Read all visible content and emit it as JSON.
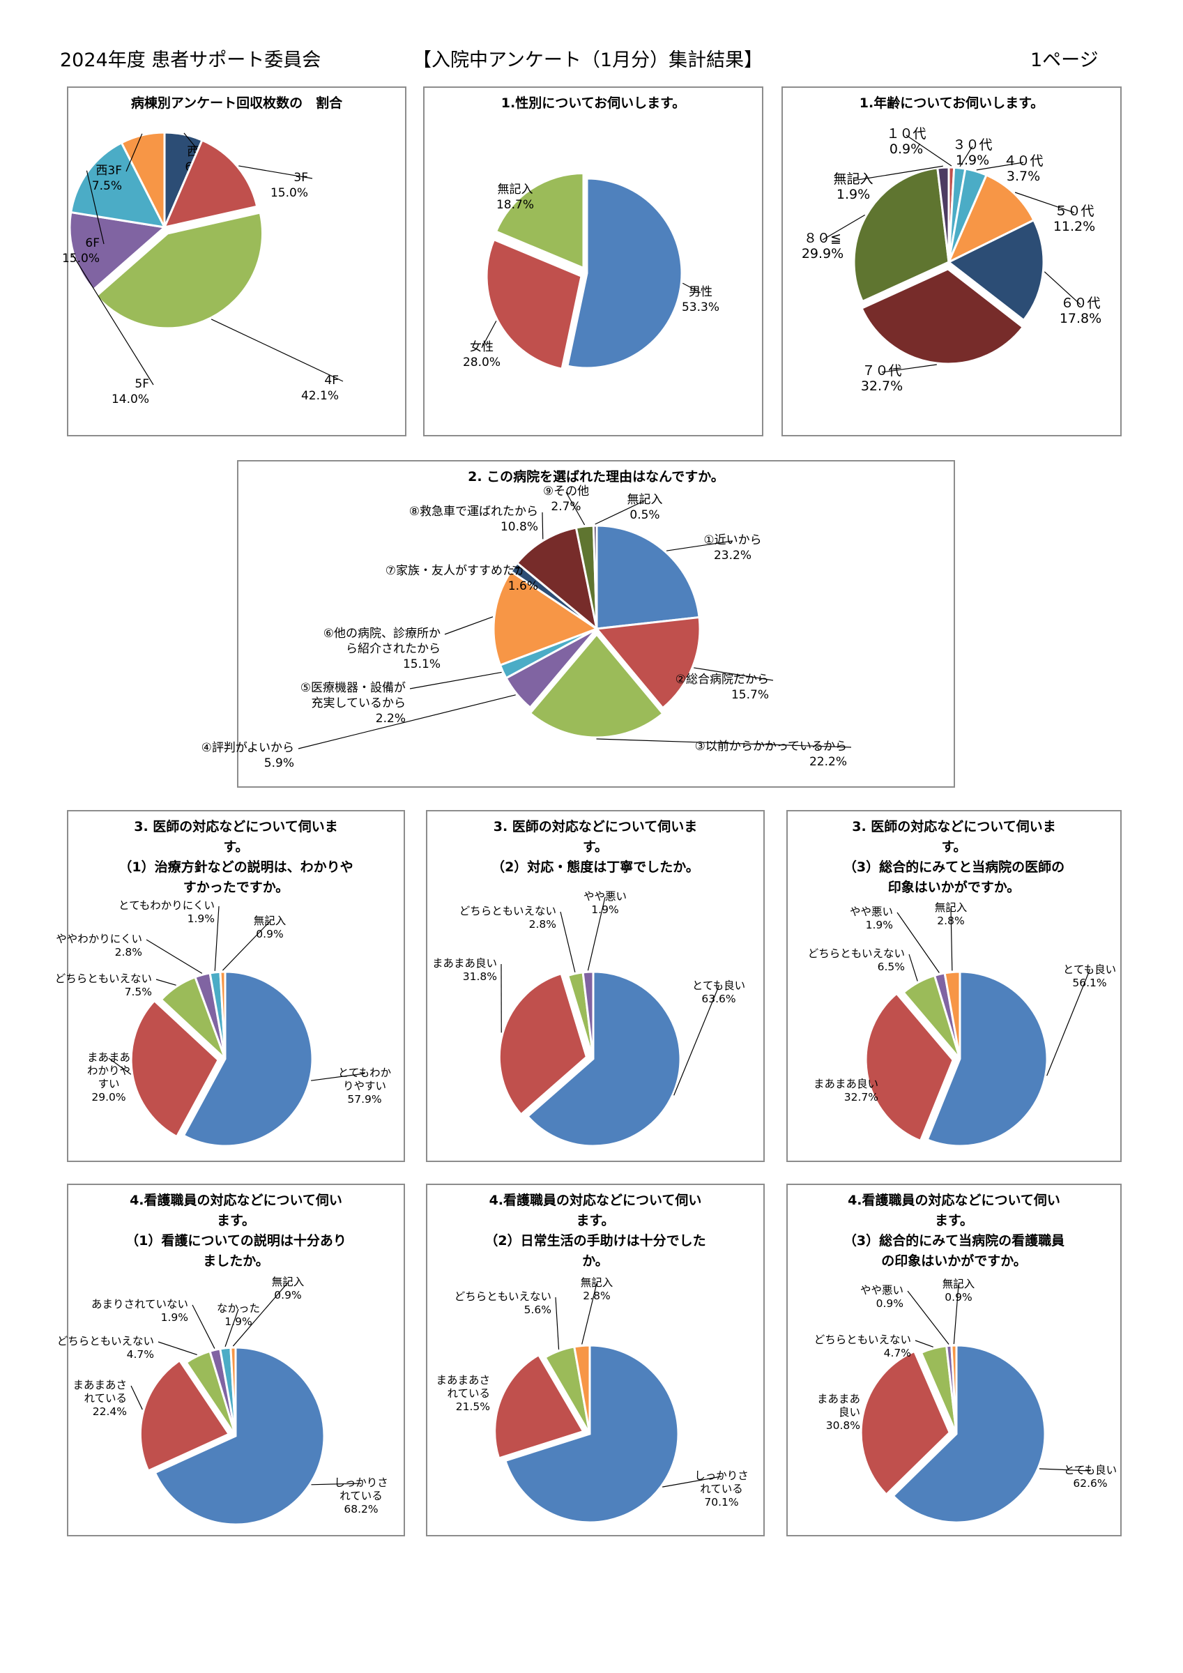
{
  "header": {
    "left": "2024年度 患者サポート委員会",
    "center": "【入院中アンケート（1月分）集計結果】",
    "right": "1ページ"
  },
  "colors": {
    "blue": "#4f81bd",
    "red": "#c0504d",
    "green": "#9bbb59",
    "purple": "#8064a2",
    "aqua": "#4bacc6",
    "orange": "#f79646",
    "navy": "#2c4d75",
    "darkred": "#772c2a",
    "olive": "#5f7530",
    "darkpurple": "#4d3b62"
  },
  "chart_data": [
    {
      "id": "ward",
      "type": "pie",
      "title": [
        "病棟別アンケート回収枚数の　割合"
      ],
      "slices": [
        {
          "label": "西4F",
          "value": 6.5,
          "pct": "6.5%",
          "color": "navy"
        },
        {
          "label": "3F",
          "value": 15.0,
          "pct": "15.0%",
          "color": "red"
        },
        {
          "label": "4F",
          "value": 42.1,
          "pct": "42.1%",
          "color": "green"
        },
        {
          "label": "5F",
          "value": 14.0,
          "pct": "14.0%",
          "color": "purple"
        },
        {
          "label": "6F",
          "value": 15.0,
          "pct": "15.0%",
          "color": "aqua"
        },
        {
          "label": "西3F",
          "value": 7.5,
          "pct": "7.5%",
          "color": "orange"
        }
      ]
    },
    {
      "id": "gender",
      "type": "pie",
      "title": [
        "1.性別についてお伺いします。"
      ],
      "slices": [
        {
          "label": "男性",
          "value": 53.3,
          "pct": "53.3%",
          "color": "blue"
        },
        {
          "label": "女性",
          "value": 28.0,
          "pct": "28.0%",
          "color": "red"
        },
        {
          "label": "無記入",
          "value": 18.7,
          "pct": "18.7%",
          "color": "green"
        }
      ]
    },
    {
      "id": "age",
      "type": "pie",
      "title": [
        "1.年齢についてお伺いします。"
      ],
      "slices": [
        {
          "label": "１０代",
          "value": 0.9,
          "pct": "0.9%",
          "color": "red"
        },
        {
          "label": "３０代",
          "value": 1.9,
          "pct": "1.9%",
          "color": "aqua"
        },
        {
          "label": "４０代",
          "value": 3.7,
          "pct": "3.7%",
          "color": "aqua"
        },
        {
          "label": "５０代",
          "value": 11.2,
          "pct": "11.2%",
          "color": "orange"
        },
        {
          "label": "６０代",
          "value": 17.8,
          "pct": "17.8%",
          "color": "navy"
        },
        {
          "label": "７０代",
          "value": 32.7,
          "pct": "32.7%",
          "color": "darkred"
        },
        {
          "label": "８０≦",
          "value": 29.9,
          "pct": "29.9%",
          "color": "olive"
        },
        {
          "label": "無記入",
          "value": 1.9,
          "pct": "1.9%",
          "color": "darkpurple"
        }
      ]
    },
    {
      "id": "reason",
      "type": "pie",
      "title": [
        "2. この病院を選ばれた理由はなんですか。"
      ],
      "slices": [
        {
          "label": "①近いから",
          "value": 23.2,
          "pct": "23.2%",
          "color": "blue"
        },
        {
          "label": "②総合病院だから",
          "value": 15.7,
          "pct": "15.7%",
          "color": "red"
        },
        {
          "label": "③以前からかかっているから",
          "value": 22.2,
          "pct": "22.2%",
          "color": "green"
        },
        {
          "label": "④評判がよいから",
          "value": 5.9,
          "pct": "5.9%",
          "color": "purple"
        },
        {
          "label": "⑤医療機器・設備が\n充実しているから",
          "value": 2.2,
          "pct": "2.2%",
          "color": "aqua"
        },
        {
          "label": "⑥他の病院、診療所か\nら紹介されたから",
          "value": 15.1,
          "pct": "15.1%",
          "color": "orange"
        },
        {
          "label": "⑦家族・友人がすすめたから",
          "value": 1.6,
          "pct": "1.6%",
          "color": "navy"
        },
        {
          "label": "⑧救急車で運ばれたから",
          "value": 10.8,
          "pct": "10.8%",
          "color": "darkred"
        },
        {
          "label": "⑨その他",
          "value": 2.7,
          "pct": "2.7%",
          "color": "olive"
        },
        {
          "label": "無記入",
          "value": 0.5,
          "pct": "0.5%",
          "color": "darkpurple"
        }
      ]
    },
    {
      "id": "doc1",
      "type": "pie",
      "title": [
        "3. 医師の対応などについて伺いま",
        "す。",
        "（1）治療方針などの説明は、わかりや",
        "すかったですか。"
      ],
      "slices": [
        {
          "label": "とてもわか\nりやすい",
          "value": 57.9,
          "pct": "57.9%",
          "color": "blue"
        },
        {
          "label": "まあまあ\nわかりや\nすい",
          "value": 29.0,
          "pct": "29.0%",
          "color": "red"
        },
        {
          "label": "どちらともいえない",
          "value": 7.5,
          "pct": "7.5%",
          "color": "green"
        },
        {
          "label": "ややわかりにくい",
          "value": 2.8,
          "pct": "2.8%",
          "color": "purple"
        },
        {
          "label": "とてもわかりにくい",
          "value": 1.9,
          "pct": "1.9%",
          "color": "aqua"
        },
        {
          "label": "無記入",
          "value": 0.9,
          "pct": "0.9%",
          "color": "orange"
        }
      ]
    },
    {
      "id": "doc2",
      "type": "pie",
      "title": [
        "3. 医師の対応などについて伺いま",
        "す。",
        "（2）対応・態度は丁寧でしたか。"
      ],
      "slices": [
        {
          "label": "とても良い",
          "value": 63.6,
          "pct": "63.6%",
          "color": "blue"
        },
        {
          "label": "まあまあ良い",
          "value": 31.8,
          "pct": "31.8%",
          "color": "red"
        },
        {
          "label": "どちらともいえない",
          "value": 2.8,
          "pct": "2.8%",
          "color": "green"
        },
        {
          "label": "やや悪い",
          "value": 1.9,
          "pct": "1.9%",
          "color": "purple"
        }
      ]
    },
    {
      "id": "doc3",
      "type": "pie",
      "title": [
        "3. 医師の対応などについて伺いま",
        "す。",
        "（3）総合的にみてと当病院の医師の",
        "印象はいかがですか。"
      ],
      "slices": [
        {
          "label": "とても良い",
          "value": 56.1,
          "pct": "56.1%",
          "color": "blue"
        },
        {
          "label": "まあまあ良い",
          "value": 32.7,
          "pct": "32.7%",
          "color": "red"
        },
        {
          "label": "どちらともいえない",
          "value": 6.5,
          "pct": "6.5%",
          "color": "green"
        },
        {
          "label": "やや悪い",
          "value": 1.9,
          "pct": "1.9%",
          "color": "purple"
        },
        {
          "label": "無記入",
          "value": 2.8,
          "pct": "2.8%",
          "color": "orange"
        }
      ]
    },
    {
      "id": "nurse1",
      "type": "pie",
      "title": [
        "4.看護職員の対応などについて伺い",
        "ます。",
        "（1）看護についての説明は十分あり",
        "ましたか。"
      ],
      "slices": [
        {
          "label": "しっかりさ\nれている",
          "value": 68.2,
          "pct": "68.2%",
          "color": "blue"
        },
        {
          "label": "まあまあさ\nれている",
          "value": 22.4,
          "pct": "22.4%",
          "color": "red"
        },
        {
          "label": "どちらともいえない",
          "value": 4.7,
          "pct": "4.7%",
          "color": "green"
        },
        {
          "label": "あまりされていない",
          "value": 1.9,
          "pct": "1.9%",
          "color": "purple"
        },
        {
          "label": "なかった",
          "value": 1.9,
          "pct": "1.9%",
          "color": "aqua"
        },
        {
          "label": "無記入",
          "value": 0.9,
          "pct": "0.9%",
          "color": "orange"
        }
      ]
    },
    {
      "id": "nurse2",
      "type": "pie",
      "title": [
        "4.看護職員の対応などについて伺い",
        "ます。",
        "（2）日常生活の手助けは十分でした",
        "か。"
      ],
      "slices": [
        {
          "label": "しっかりさ\nれている",
          "value": 70.1,
          "pct": "70.1%",
          "color": "blue"
        },
        {
          "label": "まあまあさ\nれている",
          "value": 21.5,
          "pct": "21.5%",
          "color": "red"
        },
        {
          "label": "どちらともいえない",
          "value": 5.6,
          "pct": "5.6%",
          "color": "green"
        },
        {
          "label": "無記入",
          "value": 2.8,
          "pct": "2.8%",
          "color": "orange"
        }
      ]
    },
    {
      "id": "nurse3",
      "type": "pie",
      "title": [
        "4.看護職員の対応などについて伺い",
        "ます。",
        "（3）総合的にみて当病院の看護職員",
        "の印象はいかがですか。"
      ],
      "slices": [
        {
          "label": "とても良い",
          "value": 62.6,
          "pct": "62.6%",
          "color": "blue"
        },
        {
          "label": "まあまあ\n良い",
          "value": 30.8,
          "pct": "30.8%",
          "color": "red"
        },
        {
          "label": "どちらともいえない",
          "value": 4.7,
          "pct": "4.7%",
          "color": "green"
        },
        {
          "label": "やや悪い",
          "value": 0.9,
          "pct": "0.9%",
          "color": "purple"
        },
        {
          "label": "無記入",
          "value": 0.9,
          "pct": "0.9%",
          "color": "orange"
        }
      ]
    }
  ]
}
